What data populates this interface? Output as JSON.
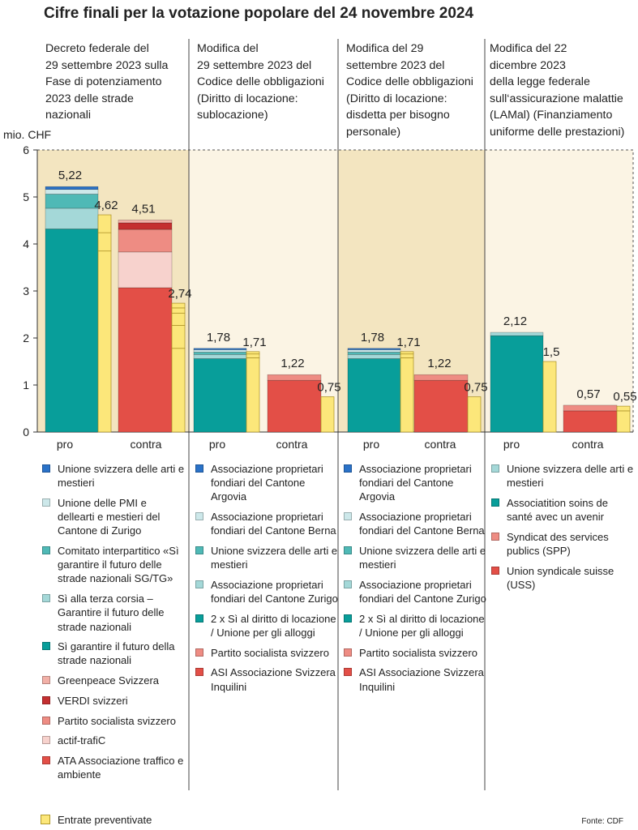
{
  "title": "Cifre finali per la votazione popolare del 24 novembre 2024",
  "unit_label": "mio. CHF",
  "source": "Fonte: CDF",
  "budget_legend": "Entrate preventivate",
  "colors": {
    "panel_dark": "#f3e5c0",
    "panel_light": "#fbf4e4",
    "budget": "#fce77a",
    "budget_stroke": "#a88d22"
  },
  "chart_data": {
    "type": "bar",
    "stacked": true,
    "yaxis": {
      "ticks": [
        0,
        1,
        2,
        3,
        4,
        5,
        6
      ],
      "ylim": [
        0,
        6
      ]
    },
    "grid": false,
    "panels": [
      {
        "description": "Decreto federale del\n29 settembre 2023 sulla\nFase di potenziamento\n2023 delle strade\nnazionali",
        "categories": [
          "pro",
          "contra"
        ],
        "bars": [
          {
            "category": "pro",
            "total": 5.22,
            "total_label": "5,22",
            "segments": [
              {
                "label": "Sì garantire il futuro della strade nazionali",
                "value": 4.32,
                "color": "#089e9a"
              },
              {
                "label": "Sì alla terza corsia – Garantire il futuro delle strade nazionali",
                "value": 0.44,
                "color": "#a4d8d8"
              },
              {
                "label": "Comitato interpartitico «Sì garantire il futuro delle strade nazionali SG/TG»",
                "value": 0.3,
                "color": "#4fb9b6"
              },
              {
                "label": "Unione delle PMI e dellearti e mestieri del Cantone di Zurigo",
                "value": 0.1,
                "color": "#cde8ea"
              },
              {
                "label": "Unione svizzera delle arti e mestieri",
                "value": 0.06,
                "color": "#2a72c8"
              }
            ],
            "budget": {
              "total": 4.62,
              "total_label": "4,62",
              "segments": [
                3.85,
                0.39,
                0.38
              ]
            }
          },
          {
            "category": "contra",
            "total": 4.51,
            "total_label": "4,51",
            "segments": [
              {
                "label": "ATA Associazione traffico e ambiente",
                "value": 3.07,
                "color": "#e34f47"
              },
              {
                "label": "actif-trafiC",
                "value": 0.76,
                "color": "#f7d2cd"
              },
              {
                "label": "Partito socialista svizzero",
                "value": 0.48,
                "color": "#ee8c83"
              },
              {
                "label": "VERDI svizzeri",
                "value": 0.14,
                "color": "#c42f30"
              },
              {
                "label": "Greenpeace Svizzera",
                "value": 0.06,
                "color": "#f2b0a7"
              }
            ],
            "budget": {
              "total": 2.74,
              "total_label": "2,74",
              "segments": [
                1.78,
                0.49,
                0.26,
                0.11,
                0.1
              ]
            }
          }
        ],
        "legend": [
          {
            "label": "Unione svizzera delle arti e mestieri",
            "color": "#2a72c8"
          },
          {
            "label": "Unione delle PMI e dellearti e mestieri del Cantone di Zurigo",
            "color": "#cde8ea"
          },
          {
            "label": "Comitato interpartitico «Sì garantire il futuro delle strade nazionali SG/TG»",
            "color": "#4fb9b6"
          },
          {
            "label": "Sì alla terza corsia – Garantire il futuro delle strade nazionali",
            "color": "#a4d8d8"
          },
          {
            "label": "Sì garantire il futuro della strade nazionali",
            "color": "#089e9a"
          },
          {
            "label": "Greenpeace Svizzera",
            "color": "#f2b0a7"
          },
          {
            "label": "VERDI svizzeri",
            "color": "#c42f30"
          },
          {
            "label": "Partito socialista svizzero",
            "color": "#ee8c83"
          },
          {
            "label": "actif-trafiC",
            "color": "#f7d2cd"
          },
          {
            "label": "ATA Associazione traffico e ambiente",
            "color": "#e34f47"
          }
        ]
      },
      {
        "description": "Modifica del\n29 settembre 2023 del\nCodice delle obbligazioni\n(Diritto di locazione:\n sublocazione)",
        "categories": [
          "pro",
          "contra"
        ],
        "bars": [
          {
            "category": "pro",
            "total": 1.78,
            "total_label": "1,78",
            "segments": [
              {
                "label": "2 x Sì al diritto di locazione / Unione per gli alloggi",
                "value": 1.56,
                "color": "#089e9a"
              },
              {
                "label": "Associazione proprietari fondiari del Cantone Zurigo",
                "value": 0.09,
                "color": "#a4d8d8"
              },
              {
                "label": "Unione svizzera delle arti e mestieri",
                "value": 0.05,
                "color": "#4fb9b6"
              },
              {
                "label": "Associazione proprietari fondiari del Cantone Berna",
                "value": 0.05,
                "color": "#cde8ea"
              },
              {
                "label": "Associazione proprietari fondiari del Cantone Argovia",
                "value": 0.03,
                "color": "#2a72c8"
              }
            ],
            "budget": {
              "total": 1.71,
              "total_label": "1,71",
              "segments": [
                1.58,
                0.08,
                0.05
              ]
            }
          },
          {
            "category": "contra",
            "total": 1.22,
            "total_label": "1,22",
            "segments": [
              {
                "label": "ASI Associazione Svizzera Inquilini",
                "value": 1.1,
                "color": "#e34f47"
              },
              {
                "label": "Partito socialista svizzero",
                "value": 0.12,
                "color": "#ee8c83"
              }
            ],
            "budget": {
              "total": 0.75,
              "total_label": "0,75",
              "segments": [
                0.75
              ]
            }
          }
        ],
        "legend": [
          {
            "label": "Associazione proprietari fondiari del Cantone Argovia",
            "color": "#2a72c8"
          },
          {
            "label": "Associazione proprietari fondiari del Cantone Berna",
            "color": "#cde8ea"
          },
          {
            "label": "Unione svizzera delle arti e mestieri",
            "color": "#4fb9b6"
          },
          {
            "label": "Associazione proprietari fondiari del Cantone Zurigo",
            "color": "#a4d8d8"
          },
          {
            "label": "2 x Sì al diritto di locazione / Unione per gli alloggi",
            "color": "#089e9a"
          },
          {
            "label": "Partito socialista svizzero",
            "color": "#ee8c83"
          },
          {
            "label": "ASI Associazione Svizzera Inquilini",
            "color": "#e34f47"
          }
        ]
      },
      {
        "description": "Modifica del 29\nsettembre 2023 del\nCodice delle obbligazioni\n(Diritto di locazione:\ndisdetta per bisogno\npersonale)",
        "categories": [
          "pro",
          "contra"
        ],
        "bars": [
          {
            "category": "pro",
            "total": 1.78,
            "total_label": "1,78",
            "segments": [
              {
                "label": "2 x Sì al diritto di locazione / Unione per gli alloggi",
                "value": 1.56,
                "color": "#089e9a"
              },
              {
                "label": "Associazione proprietari fondiari del Cantone Zurigo",
                "value": 0.09,
                "color": "#a4d8d8"
              },
              {
                "label": "Unione svizzera delle arti e mestieri",
                "value": 0.05,
                "color": "#4fb9b6"
              },
              {
                "label": "Associazione proprietari fondiari del Cantone Berna",
                "value": 0.05,
                "color": "#cde8ea"
              },
              {
                "label": "Associazione proprietari fondiari del Cantone Argovia",
                "value": 0.03,
                "color": "#2a72c8"
              }
            ],
            "budget": {
              "total": 1.71,
              "total_label": "1,71",
              "segments": [
                1.58,
                0.08,
                0.05
              ]
            }
          },
          {
            "category": "contra",
            "total": 1.22,
            "total_label": "1,22",
            "segments": [
              {
                "label": "ASI Associazione Svizzera Inquilini",
                "value": 1.1,
                "color": "#e34f47"
              },
              {
                "label": "Partito socialista svizzero",
                "value": 0.12,
                "color": "#ee8c83"
              }
            ],
            "budget": {
              "total": 0.75,
              "total_label": "0,75",
              "segments": [
                0.75
              ]
            }
          }
        ],
        "legend": [
          {
            "label": "Associazione proprietari fondiari del Cantone Argovia",
            "color": "#2a72c8"
          },
          {
            "label": "Associazione proprietari fondiari del Cantone Berna",
            "color": "#cde8ea"
          },
          {
            "label": "Unione svizzera delle arti e mestieri",
            "color": "#4fb9b6"
          },
          {
            "label": "Associazione proprietari fondiari del Cantone Zurigo",
            "color": "#a4d8d8"
          },
          {
            "label": "2 x Sì al diritto di locazione / Unione per gli alloggi",
            "color": "#089e9a"
          },
          {
            "label": "Partito socialista svizzero",
            "color": "#ee8c83"
          },
          {
            "label": "ASI Associazione Svizzera Inquilini",
            "color": "#e34f47"
          }
        ]
      },
      {
        "description": "Modifica del 22\ndicembre 2023\ndella legge federale\nsull‘assicurazione malattie\n(LAMal) (Finanziamento\nuniforme delle prestazioni)",
        "categories": [
          "pro",
          "contra"
        ],
        "bars": [
          {
            "category": "pro",
            "total": 2.12,
            "total_label": "2,12",
            "segments": [
              {
                "label": "Associatition soins de santé avec un avenir",
                "value": 2.05,
                "color": "#089e9a"
              },
              {
                "label": "Unione svizzera delle arti e mestieri",
                "value": 0.07,
                "color": "#a4d8d8"
              }
            ],
            "budget": {
              "total": 1.5,
              "total_label": "1,5",
              "segments": [
                1.5
              ]
            }
          },
          {
            "category": "contra",
            "total": 0.57,
            "total_label": "0,57",
            "segments": [
              {
                "label": "Union syndicale suisse (USS)",
                "value": 0.45,
                "color": "#e34f47"
              },
              {
                "label": "Syndicat des services publics (SPP)",
                "value": 0.12,
                "color": "#ee8c83"
              }
            ],
            "budget": {
              "total": 0.55,
              "total_label": "0,55",
              "segments": [
                0.45,
                0.1
              ]
            }
          }
        ],
        "legend": [
          {
            "label": "Unione svizzera delle arti e mestieri",
            "color": "#a4d8d8"
          },
          {
            "label": "Associatition soins de santé avec un avenir",
            "color": "#089e9a"
          },
          {
            "label": "Syndicat des services publics (SPP)",
            "color": "#ee8c83"
          },
          {
            "label": "Union syndicale suisse (USS)",
            "color": "#e34f47"
          }
        ]
      }
    ]
  }
}
